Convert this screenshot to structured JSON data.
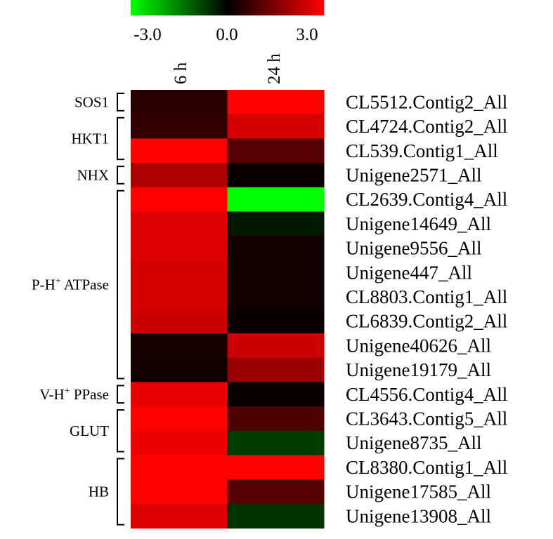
{
  "chart_data": {
    "type": "heatmap",
    "title": "",
    "columns": [
      "6 h",
      "24 h"
    ],
    "colorbar": {
      "min": -3.0,
      "max": 3.0,
      "tick_labels": [
        "-3.0",
        "0.0",
        "3.0"
      ],
      "colors": {
        "low": "#00ff00",
        "mid": "#000000",
        "high": "#ff0000"
      }
    },
    "rows": [
      {
        "label": "CL5512.Contig2_All",
        "values": [
          0.5,
          3.0
        ]
      },
      {
        "label": "CL4724.Contig2_All",
        "values": [
          0.6,
          2.5
        ]
      },
      {
        "label": "CL539.Contig1_All",
        "values": [
          3.0,
          1.0
        ]
      },
      {
        "label": "Unigene2571_All",
        "values": [
          2.0,
          0.1
        ]
      },
      {
        "label": "CL2639.Contig4_All",
        "values": [
          3.0,
          -3.0
        ]
      },
      {
        "label": "Unigene14649_All",
        "values": [
          2.6,
          -0.3
        ]
      },
      {
        "label": "Unigene9556_All",
        "values": [
          2.6,
          0.2
        ]
      },
      {
        "label": "Unigene447_All",
        "values": [
          2.5,
          0.2
        ]
      },
      {
        "label": "CL8803.Contig1_All",
        "values": [
          2.5,
          0.2
        ]
      },
      {
        "label": "CL6839.Contig2_All",
        "values": [
          2.4,
          0.1
        ]
      },
      {
        "label": "Unigene40626_All",
        "values": [
          0.3,
          2.4
        ]
      },
      {
        "label": "Unigene19179_All",
        "values": [
          0.2,
          1.8
        ]
      },
      {
        "label": "CL4556.Contig4_All",
        "values": [
          2.7,
          0.1
        ]
      },
      {
        "label": "CL3643.Contig5_All",
        "values": [
          3.0,
          0.9
        ]
      },
      {
        "label": "Unigene8735_All",
        "values": [
          2.8,
          -0.7
        ]
      },
      {
        "label": "CL8380.Contig1_All",
        "values": [
          3.0,
          3.0
        ]
      },
      {
        "label": "Unigene17585_All",
        "values": [
          3.0,
          1.0
        ]
      },
      {
        "label": "Unigene13908_All",
        "values": [
          2.6,
          -0.6
        ]
      }
    ],
    "groups": [
      {
        "label": "SOS1",
        "start": 0,
        "end": 0
      },
      {
        "label": "HKT1",
        "start": 1,
        "end": 2
      },
      {
        "label": "NHX",
        "start": 3,
        "end": 3
      },
      {
        "label": "P-H",
        "sup": "+",
        "suffix": " ATPase",
        "start": 4,
        "end": 11
      },
      {
        "label": "V-H",
        "sup": "+",
        "suffix": " PPase",
        "start": 12,
        "end": 12
      },
      {
        "label": "GLUT",
        "start": 13,
        "end": 14
      },
      {
        "label": "HB",
        "start": 15,
        "end": 17
      }
    ]
  }
}
